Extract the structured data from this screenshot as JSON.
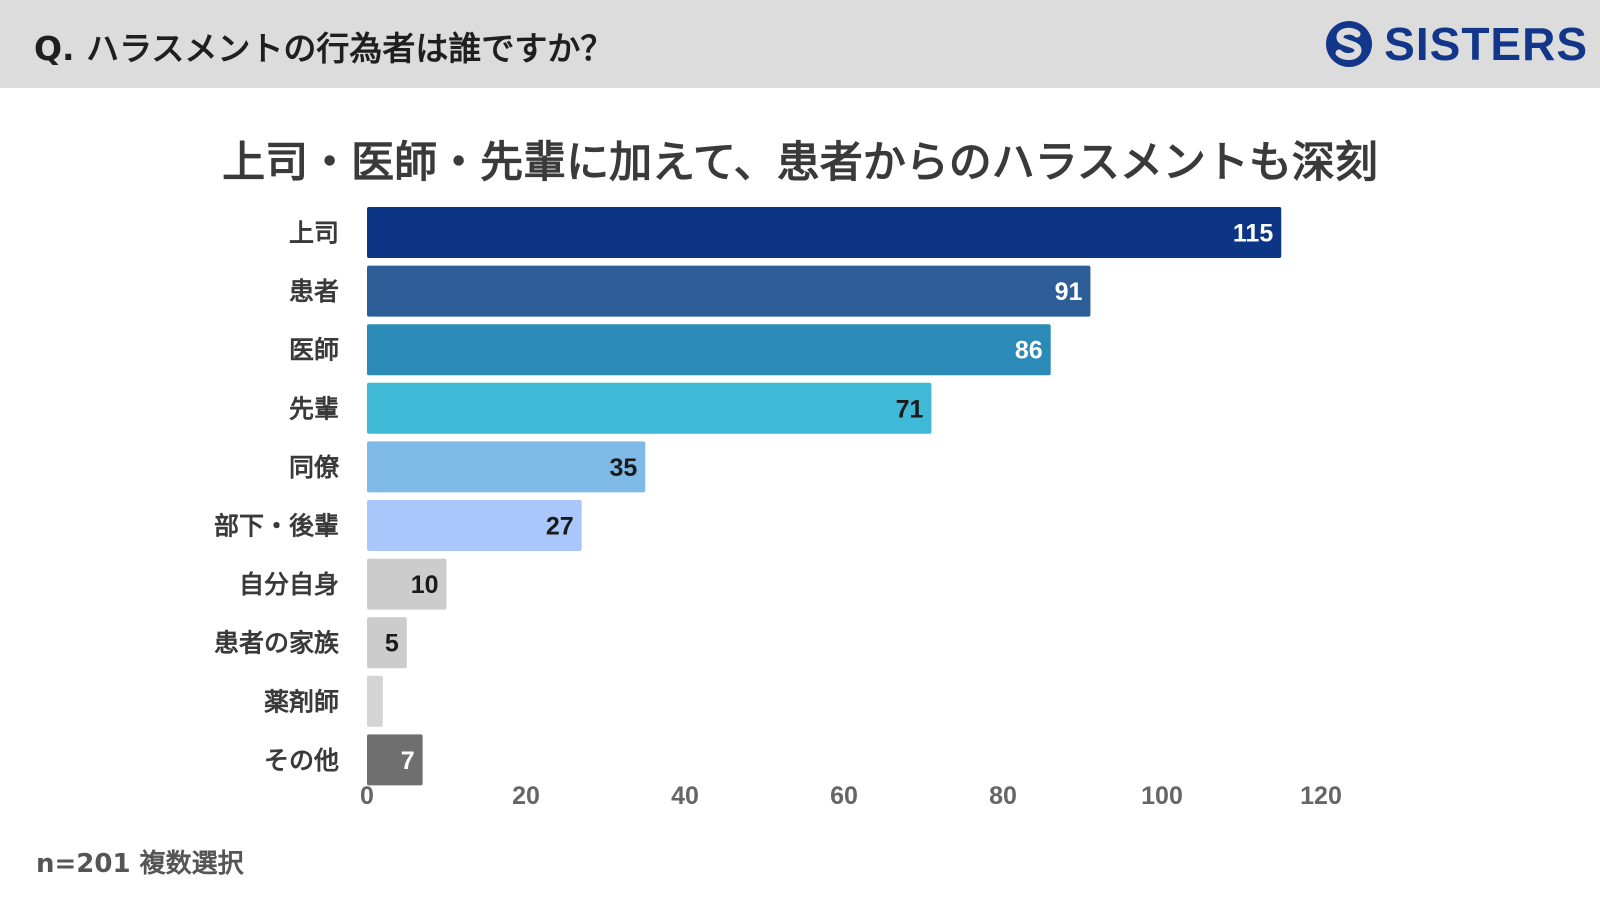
{
  "header": {
    "question": "Q. ハラスメントの行為者は誰ですか？",
    "brand_name": "SISTERS",
    "brand_icon": "sisters-logo-icon",
    "brand_color": "#12378a"
  },
  "subtitle": "上司・医師・先輩に加えて、患者からのハラスメントも深刻",
  "note": "n=201 複数選択",
  "chart_data": {
    "type": "bar",
    "orientation": "horizontal",
    "title": "",
    "xlabel": "",
    "ylabel": "",
    "categories": [
      "上司",
      "患者",
      "医師",
      "先輩",
      "同僚",
      "部下・後輩",
      "自分自身",
      "患者の家族",
      "薬剤師",
      "その他"
    ],
    "values": [
      115,
      91,
      86,
      71,
      35,
      27,
      10,
      5,
      2,
      7
    ],
    "data_labels": [
      "115",
      "91",
      "86",
      "71",
      "35",
      "27",
      "10",
      "5",
      "",
      "7"
    ],
    "colors": [
      "#0c3585",
      "#2e5e97",
      "#2b8ab8",
      "#3fb9d6",
      "#7fb9e6",
      "#aac7fb",
      "#cccccc",
      "#cccccc",
      "#d4d4d4",
      "#6f6f6f"
    ],
    "label_colors": [
      "#ffffff",
      "#ffffff",
      "#ffffff",
      "#1a1a1a",
      "#1a1a1a",
      "#1a1a1a",
      "#1a1a1a",
      "#1a1a1a",
      "#1a1a1a",
      "#ffffff"
    ],
    "xlim": [
      0,
      120
    ],
    "xticks": [
      0,
      20,
      40,
      60,
      80,
      100,
      120
    ],
    "grid": false,
    "legend": "none"
  }
}
